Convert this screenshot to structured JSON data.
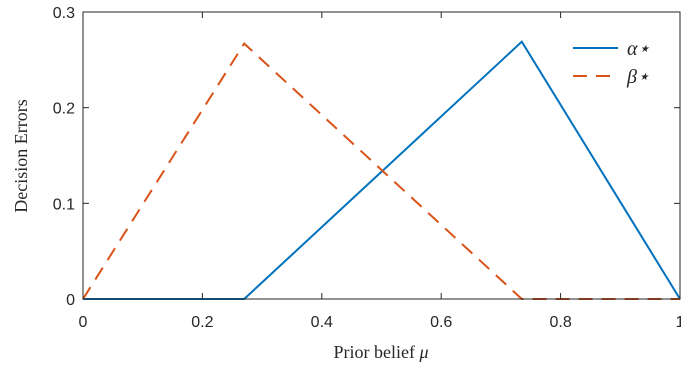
{
  "chart_data": {
    "type": "line",
    "xlabel": "Prior belief",
    "xlabel_symbol": "μ",
    "ylabel": "Decision Errors",
    "xlim": [
      0,
      1
    ],
    "ylim": [
      0,
      0.3
    ],
    "x_ticks": [
      0,
      0.2,
      0.4,
      0.6,
      0.8,
      1
    ],
    "x_tick_labels": [
      "0",
      "0.2",
      "0.4",
      "0.6",
      "0.8",
      "1"
    ],
    "y_ticks": [
      0,
      0.1,
      0.2,
      0.3
    ],
    "y_tick_labels": [
      "0",
      "0.1",
      "0.2",
      "0.3"
    ],
    "grid": false,
    "legend_position": "top-right",
    "series": [
      {
        "name": "α⋆",
        "style": "solid",
        "color": "#0072BD",
        "points": [
          [
            0,
            0
          ],
          [
            0.27,
            0
          ],
          [
            0.735,
            0.269
          ],
          [
            1,
            0
          ]
        ]
      },
      {
        "name": "β⋆",
        "style": "dashed",
        "color": "#D95319",
        "points": [
          [
            0,
            0
          ],
          [
            0.27,
            0.267
          ],
          [
            0.735,
            0
          ],
          [
            1,
            0
          ]
        ]
      }
    ]
  }
}
